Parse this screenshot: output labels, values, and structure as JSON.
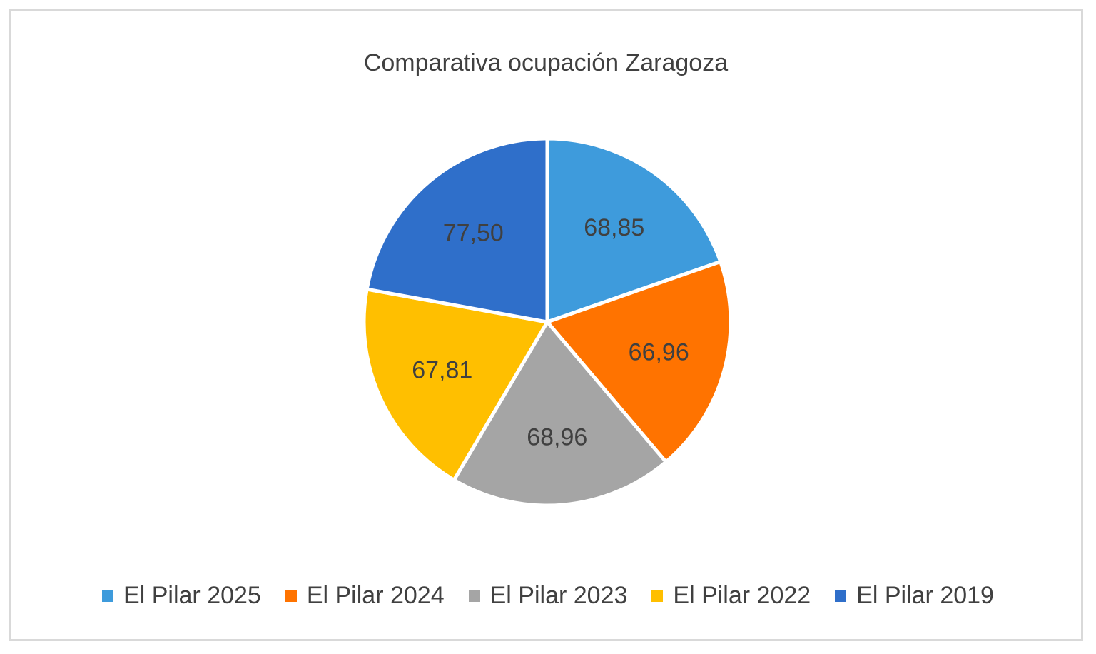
{
  "chart_data": {
    "type": "pie",
    "title": "Comparativa ocupación Zaragoza",
    "categories": [
      "El Pilar 2025",
      "El Pilar 2024",
      "El Pilar 2023",
      "El Pilar 2022",
      "El Pilar 2019"
    ],
    "values": [
      68.85,
      66.96,
      68.96,
      67.81,
      77.5
    ],
    "data_labels": [
      "68,85",
      "66,96",
      "68,96",
      "67,81",
      "77,50"
    ],
    "colors": [
      "#3e9bdc",
      "#ff7300",
      "#a5a5a5",
      "#ffbf00",
      "#2f6fca"
    ],
    "legend_position": "bottom"
  }
}
